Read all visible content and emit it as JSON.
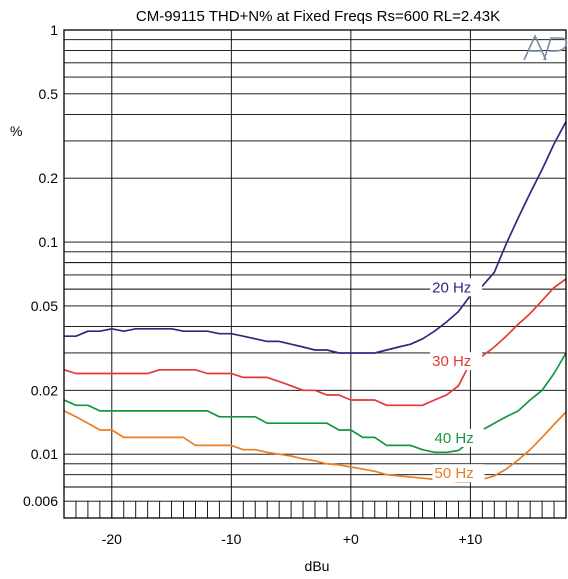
{
  "chart_data": {
    "type": "line",
    "title": "CM-99115 THD+N% at Fixed Freqs  Rs=600  RL=2.43K",
    "xlabel": "dBu",
    "ylabel": "%",
    "x_scale": "linear",
    "y_scale": "log",
    "xlim": [
      -24,
      18
    ],
    "ylim": [
      0.005,
      1
    ],
    "x_ticks": [
      {
        "value": -20,
        "label": "-20"
      },
      {
        "value": -10,
        "label": "-10"
      },
      {
        "value": 0,
        "label": "+0"
      },
      {
        "value": 10,
        "label": "+10"
      }
    ],
    "y_ticks": [
      {
        "value": 1,
        "label": "1"
      },
      {
        "value": 0.5,
        "label": "0.5"
      },
      {
        "value": 0.2,
        "label": "0.2"
      },
      {
        "value": 0.1,
        "label": "0.1"
      },
      {
        "value": 0.05,
        "label": "0.05"
      },
      {
        "value": 0.02,
        "label": "0.02"
      },
      {
        "value": 0.01,
        "label": "0.01"
      },
      {
        "value": 0.006,
        "label": "0.006"
      }
    ],
    "grid": true,
    "logo": "Ap",
    "series": [
      {
        "name": "20 Hz",
        "color": "#2b2a7e",
        "x": [
          -24,
          -23,
          -22,
          -21,
          -20,
          -19,
          -18,
          -17,
          -16,
          -15,
          -14,
          -13,
          -12,
          -11,
          -10,
          -9,
          -8,
          -7,
          -6,
          -5,
          -4,
          -3,
          -2,
          -1,
          0,
          1,
          2,
          3,
          4,
          5,
          6,
          7,
          8,
          9,
          10,
          11,
          12,
          13,
          14,
          15,
          16,
          17,
          18
        ],
        "y": [
          0.036,
          0.036,
          0.038,
          0.038,
          0.039,
          0.038,
          0.039,
          0.039,
          0.039,
          0.039,
          0.038,
          0.038,
          0.038,
          0.037,
          0.037,
          0.036,
          0.035,
          0.034,
          0.034,
          0.033,
          0.032,
          0.031,
          0.031,
          0.03,
          0.03,
          0.03,
          0.03,
          0.031,
          0.032,
          0.033,
          0.035,
          0.038,
          0.042,
          0.047,
          0.056,
          0.062,
          0.072,
          0.098,
          0.13,
          0.17,
          0.22,
          0.29,
          0.37
        ]
      },
      {
        "name": "30 Hz",
        "color": "#e03a33",
        "x": [
          -24,
          -23,
          -22,
          -21,
          -20,
          -19,
          -18,
          -17,
          -16,
          -15,
          -14,
          -13,
          -12,
          -11,
          -10,
          -9,
          -8,
          -7,
          -6,
          -5,
          -4,
          -3,
          -2,
          -1,
          0,
          1,
          2,
          3,
          4,
          5,
          6,
          7,
          8,
          9,
          10,
          11,
          12,
          13,
          14,
          15,
          16,
          17,
          18
        ],
        "y": [
          0.025,
          0.024,
          0.024,
          0.024,
          0.024,
          0.024,
          0.024,
          0.024,
          0.025,
          0.025,
          0.025,
          0.025,
          0.024,
          0.024,
          0.024,
          0.023,
          0.023,
          0.023,
          0.022,
          0.021,
          0.02,
          0.02,
          0.019,
          0.019,
          0.018,
          0.018,
          0.018,
          0.017,
          0.017,
          0.017,
          0.017,
          0.018,
          0.019,
          0.021,
          0.027,
          0.029,
          0.032,
          0.036,
          0.041,
          0.046,
          0.053,
          0.061,
          0.067
        ]
      },
      {
        "name": "40 Hz",
        "color": "#13973f",
        "x": [
          -24,
          -23,
          -22,
          -21,
          -20,
          -19,
          -18,
          -17,
          -16,
          -15,
          -14,
          -13,
          -12,
          -11,
          -10,
          -9,
          -8,
          -7,
          -6,
          -5,
          -4,
          -3,
          -2,
          -1,
          0,
          1,
          2,
          3,
          4,
          5,
          6,
          7,
          8,
          9,
          10,
          11,
          12,
          13,
          14,
          15,
          16,
          17,
          18
        ],
        "y": [
          0.018,
          0.017,
          0.017,
          0.016,
          0.016,
          0.016,
          0.016,
          0.016,
          0.016,
          0.016,
          0.016,
          0.016,
          0.016,
          0.015,
          0.015,
          0.015,
          0.015,
          0.014,
          0.014,
          0.014,
          0.014,
          0.014,
          0.014,
          0.013,
          0.013,
          0.012,
          0.012,
          0.011,
          0.011,
          0.011,
          0.0105,
          0.0102,
          0.0102,
          0.0104,
          0.0115,
          0.013,
          0.014,
          0.015,
          0.016,
          0.018,
          0.02,
          0.024,
          0.03
        ]
      },
      {
        "name": "50 Hz",
        "color": "#eb7d22",
        "x": [
          -24,
          -23,
          -22,
          -21,
          -20,
          -19,
          -18,
          -17,
          -16,
          -15,
          -14,
          -13,
          -12,
          -11,
          -10,
          -9,
          -8,
          -7,
          -6,
          -5,
          -4,
          -3,
          -2,
          -1,
          0,
          1,
          2,
          3,
          4,
          5,
          6,
          7,
          8,
          9,
          10,
          11,
          12,
          13,
          14,
          15,
          16,
          17,
          18
        ],
        "y": [
          0.016,
          0.015,
          0.014,
          0.013,
          0.013,
          0.012,
          0.012,
          0.012,
          0.012,
          0.012,
          0.012,
          0.011,
          0.011,
          0.011,
          0.011,
          0.0105,
          0.0105,
          0.0102,
          0.01,
          0.0098,
          0.0095,
          0.0093,
          0.009,
          0.0089,
          0.0087,
          0.0085,
          0.0083,
          0.008,
          0.0079,
          0.0078,
          0.0077,
          0.0076,
          0.0075,
          0.0074,
          0.0074,
          0.0076,
          0.0079,
          0.0085,
          0.0094,
          0.0105,
          0.012,
          0.0138,
          0.0158
        ]
      }
    ],
    "annotations": [
      {
        "text": "20 Hz",
        "series": "20 Hz",
        "x": 6.8,
        "y": 0.058
      },
      {
        "text": "30 Hz",
        "series": "30 Hz",
        "x": 6.8,
        "y": 0.026
      },
      {
        "text": "40 Hz",
        "series": "40 Hz",
        "x": 7.0,
        "y": 0.0113
      },
      {
        "text": "50 Hz",
        "series": "50 Hz",
        "x": 7.0,
        "y": 0.0077
      }
    ]
  }
}
